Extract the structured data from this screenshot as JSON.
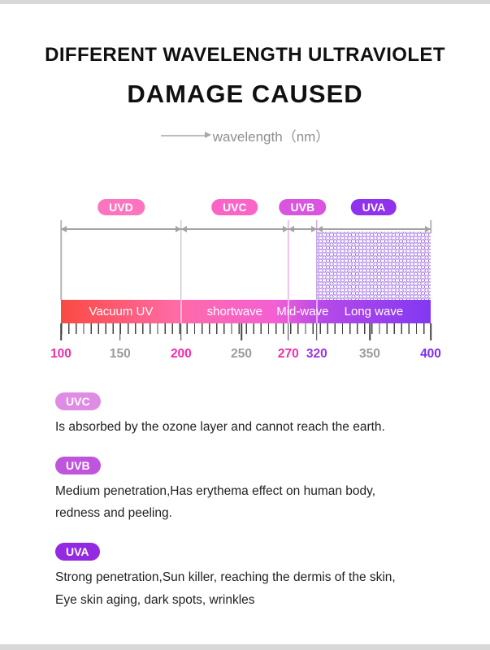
{
  "header": {
    "title_line1": "DIFFERENT WAVELENGTH ULTRAVIOLET",
    "title_line2": "DAMAGE CAUSED",
    "axis_label": "wavelength（nm）"
  },
  "spectrum": {
    "bands": [
      {
        "label": "UVD",
        "start": 100,
        "end": 200,
        "pill_color": "#fb74bd",
        "bar_label": "Vacuum UV"
      },
      {
        "label": "UVC",
        "start": 200,
        "end": 270,
        "pill_color": "#f964c7",
        "bar_label": "shortwave"
      },
      {
        "label": "UVB",
        "start": 270,
        "end": 320,
        "pill_color": "#d955e0",
        "bar_label": "Mid-wave"
      },
      {
        "label": "UVA",
        "start": 320,
        "end": 400,
        "pill_color": "#9031ee",
        "bar_label": "Long wave"
      }
    ],
    "axis_ticks": [
      {
        "label": "100",
        "color": "#f52ba8"
      },
      {
        "label": "150",
        "color": "#9b9b9b"
      },
      {
        "label": "200",
        "color": "#f52ba8"
      },
      {
        "label": "250",
        "color": "#9b9b9b"
      },
      {
        "label": "270",
        "color": "#f52ba8"
      },
      {
        "label": "320",
        "color": "#9933e6"
      },
      {
        "label": "350",
        "color": "#9b9b9b"
      },
      {
        "label": "400",
        "color": "#7c2cf2"
      }
    ],
    "bar_gradient_stops": [
      "#fa4942",
      "#fe6ba6",
      "#f45fd4",
      "#b84ae8",
      "#8138f2"
    ],
    "dot_pattern_color": "#a678e6"
  },
  "legend": [
    {
      "label": "UVC",
      "pill_color": "#df8ce4",
      "lines": [
        "Is absorbed by the ozone layer and cannot reach the earth."
      ]
    },
    {
      "label": "UVB",
      "pill_color": "#c055dd",
      "lines": [
        "Medium penetration,Has erythema effect on human body,",
        "redness and peeling."
      ]
    },
    {
      "label": "UVA",
      "pill_color": "#9329e0",
      "lines": [
        "Strong penetration,Sun killer, reaching the dermis of the skin,",
        "Eye skin aging, dark spots, wrinkles"
      ]
    }
  ]
}
